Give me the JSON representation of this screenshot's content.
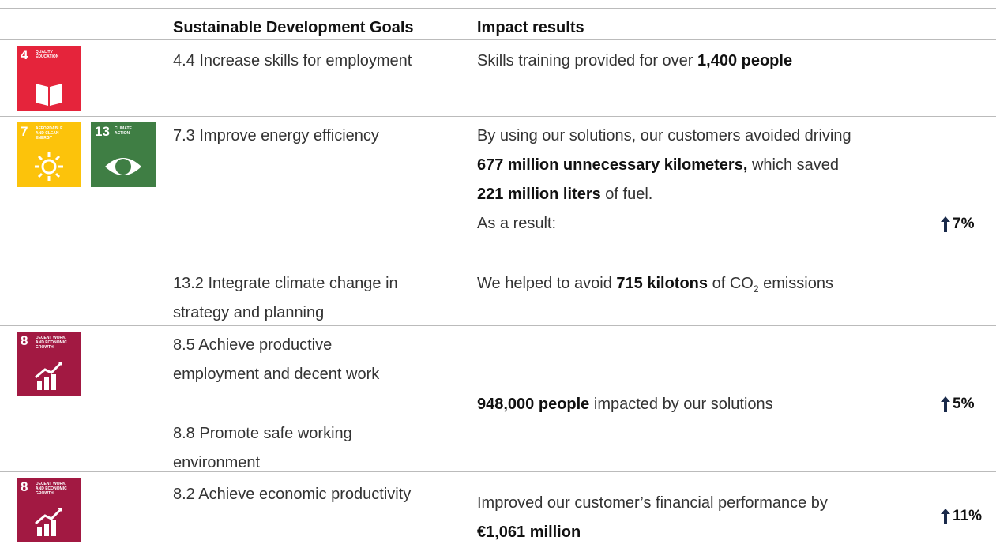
{
  "header": {
    "goals": "Sustainable Development Goals",
    "impact": "Impact results"
  },
  "rows": [
    {
      "icons": [
        {
          "number": "4",
          "label": "QUALITY EDUCATION",
          "color": "#e5243b"
        }
      ],
      "goals": [
        {
          "lines": [
            "4.4 Increase skills for employment"
          ]
        }
      ],
      "impact": [
        {
          "lines": [
            [
              {
                "text": "Skills training provided for over "
              },
              {
                "text": "1,400 people",
                "bold": true
              }
            ]
          ]
        }
      ]
    },
    {
      "icons": [
        {
          "number": "7",
          "label": "AFFORDABLE AND CLEAN ENERGY",
          "color": "#fcc30b"
        },
        {
          "number": "13",
          "label": "CLIMATE ACTION",
          "color": "#3f7e44"
        }
      ],
      "goals": [
        {
          "lines": [
            "7.3 Improve energy efficiency"
          ]
        },
        {
          "lines": [
            "13.2 Integrate climate change in",
            "strategy and planning"
          ]
        }
      ],
      "impact": [
        {
          "lines": [
            [
              {
                "text": "By using our solutions, our customers avoided driving"
              }
            ],
            [
              {
                "text": "677 million unnecessary kilometers,",
                "bold": true
              },
              {
                "text": " which saved"
              }
            ],
            [
              {
                "text": "221 million liters",
                "bold": true
              },
              {
                "text": " of fuel."
              }
            ],
            [
              {
                "text": "As a result:"
              }
            ]
          ]
        },
        {
          "lines": [
            [
              {
                "text": "We helped to avoid "
              },
              {
                "text": "715 kilotons",
                "bold": true
              },
              {
                "text": " of CO"
              },
              {
                "text": "2",
                "sub": true
              },
              {
                "text": " emissions"
              }
            ]
          ]
        }
      ],
      "change": "7%"
    },
    {
      "icons": [
        {
          "number": "8",
          "label": "DECENT WORK AND ECONOMIC GROWTH",
          "color": "#a21942"
        }
      ],
      "goals": [
        {
          "lines": [
            "8.5 Achieve productive",
            "employment and decent work"
          ]
        },
        {
          "lines": [
            "8.8 Promote safe working",
            "environment"
          ]
        }
      ],
      "impact": [
        {
          "lines": [
            [
              {
                "text": "948,000 people",
                "bold": true
              },
              {
                "text": " impacted by our solutions"
              }
            ]
          ]
        }
      ],
      "change": "5%"
    },
    {
      "icons": [
        {
          "number": "8",
          "label": "DECENT WORK AND ECONOMIC GROWTH",
          "color": "#a21942"
        }
      ],
      "goals": [
        {
          "lines": [
            "8.2 Achieve economic productivity"
          ]
        }
      ],
      "impact": [
        {
          "lines": [
            [
              {
                "text": "Improved our customer’s financial performance by"
              }
            ],
            [
              {
                "text": "€1,061 million",
                "bold": true
              }
            ]
          ]
        }
      ],
      "change": "11%"
    }
  ]
}
